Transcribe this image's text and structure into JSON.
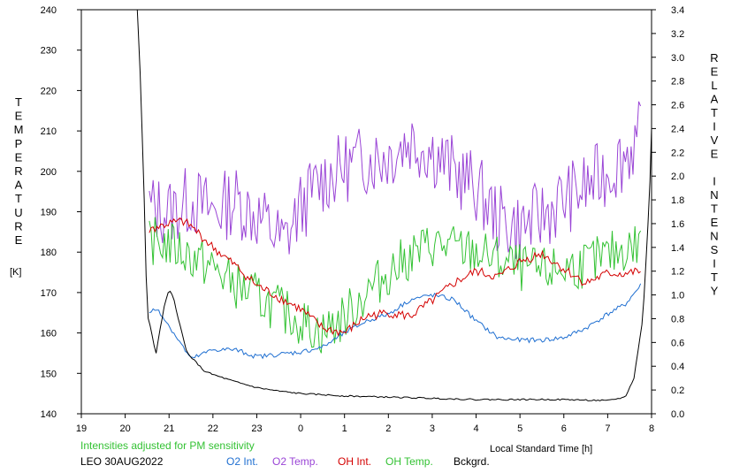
{
  "chart_data": {
    "type": "line",
    "xlabel": "Local Standard Time [h]",
    "ylabel_left": "TEMPERATURE",
    "ylabel_left_unit": "[K]",
    "ylabel_right": "RELATIVE INTENSITY",
    "x_ticks": [
      "19",
      "20",
      "21",
      "22",
      "23",
      "0",
      "1",
      "2",
      "3",
      "4",
      "5",
      "6",
      "7",
      "8"
    ],
    "x_range": [
      19,
      32
    ],
    "y_left_range": [
      140,
      240
    ],
    "y_left_ticks": [
      "140",
      "150",
      "160",
      "170",
      "180",
      "190",
      "200",
      "210",
      "220",
      "230",
      "240"
    ],
    "y_right_range": [
      0.0,
      3.4
    ],
    "y_right_ticks": [
      "0.0",
      "0.2",
      "0.4",
      "0.6",
      "0.8",
      "1.0",
      "1.2",
      "1.4",
      "1.6",
      "1.8",
      "2.0",
      "2.2",
      "2.4",
      "2.6",
      "2.8",
      "3.0",
      "3.2",
      "3.4"
    ],
    "note": "Intensities adjusted for PM sensitivity",
    "station": "LEO 30AUG2022",
    "legend": [
      {
        "name": "O2 Int.",
        "color": "#1f6fd1"
      },
      {
        "name": "O2 Temp.",
        "color": "#9a45d6"
      },
      {
        "name": "OH Int.",
        "color": "#d40000"
      },
      {
        "name": "OH Temp.",
        "color": "#33c233"
      },
      {
        "name": "Bckgrd.",
        "color": "#000000"
      }
    ],
    "series": [
      {
        "name": "O2 Temp.",
        "axis": "left",
        "color": "#9a45d6",
        "jitter": 9,
        "x": [
          20.55,
          21.0,
          21.5,
          22.0,
          22.5,
          23.0,
          23.3,
          23.6,
          24.0,
          24.5,
          25.0,
          25.5,
          26.0,
          26.5,
          27.0,
          27.5,
          28.0,
          28.5,
          29.0,
          29.5,
          30.0,
          30.5,
          31.0,
          31.4,
          31.75
        ],
        "y": [
          191,
          190,
          193,
          190,
          193,
          189,
          186,
          182,
          191,
          198,
          201,
          203,
          204,
          208,
          205,
          200,
          196,
          188,
          186,
          189,
          193,
          196,
          200,
          204,
          209
        ]
      },
      {
        "name": "OH Temp.",
        "axis": "left",
        "color": "#33c233",
        "jitter": 6,
        "x": [
          20.55,
          21.0,
          21.5,
          22.0,
          22.5,
          23.0,
          23.5,
          24.0,
          24.5,
          25.0,
          25.5,
          26.0,
          26.5,
          27.0,
          27.5,
          28.0,
          28.5,
          29.0,
          29.5,
          30.0,
          30.5,
          31.0,
          31.4,
          31.75
        ],
        "y": [
          183,
          182,
          179,
          176,
          172,
          169,
          166,
          163,
          160,
          164,
          170,
          175,
          179,
          182,
          181,
          180,
          178,
          176,
          175,
          176,
          177,
          179,
          181,
          182
        ]
      },
      {
        "name": "O2 Int.",
        "axis": "right",
        "color": "#1f6fd1",
        "jitter": 0.02,
        "x": [
          20.55,
          20.75,
          21.5,
          22.0,
          22.5,
          23.0,
          23.5,
          24.0,
          24.5,
          25.0,
          25.5,
          26.0,
          26.5,
          27.0,
          27.5,
          28.0,
          28.5,
          29.0,
          29.5,
          30.0,
          30.5,
          31.0,
          31.4,
          31.75
        ],
        "y": [
          0.86,
          0.88,
          0.46,
          0.54,
          0.54,
          0.48,
          0.5,
          0.52,
          0.56,
          0.68,
          0.78,
          0.84,
          0.96,
          1.0,
          0.96,
          0.78,
          0.64,
          0.62,
          0.62,
          0.64,
          0.72,
          0.84,
          0.92,
          1.08
        ]
      },
      {
        "name": "OH Int.",
        "axis": "right",
        "color": "#d40000",
        "jitter": 0.04,
        "x": [
          20.55,
          21.0,
          21.3,
          21.5,
          22.0,
          22.5,
          23.0,
          23.5,
          24.0,
          24.5,
          25.0,
          25.5,
          26.0,
          26.5,
          27.0,
          27.5,
          28.0,
          28.5,
          29.0,
          29.5,
          30.0,
          30.5,
          31.0,
          31.4,
          31.75
        ],
        "y": [
          1.55,
          1.6,
          1.62,
          1.58,
          1.4,
          1.25,
          1.08,
          0.98,
          0.88,
          0.72,
          0.68,
          0.82,
          0.85,
          0.82,
          0.95,
          1.1,
          1.2,
          1.15,
          1.28,
          1.35,
          1.22,
          1.1,
          1.18,
          1.18,
          1.2
        ]
      },
      {
        "name": "Bckgrd.",
        "axis": "right",
        "color": "#000000",
        "jitter": 0.006,
        "x": [
          20.25,
          20.35,
          20.45,
          20.5,
          20.55,
          20.6,
          20.7,
          20.8,
          20.9,
          21.0,
          21.1,
          21.2,
          21.4,
          21.6,
          21.8,
          22.0,
          22.5,
          23.0,
          23.5,
          24.0,
          25.0,
          26.0,
          27.0,
          28.0,
          29.0,
          30.0,
          31.0,
          31.4,
          31.6,
          31.8,
          31.95,
          32.05,
          32.1
        ],
        "y": [
          3.6,
          2.8,
          1.6,
          0.82,
          0.78,
          0.68,
          0.5,
          0.72,
          0.92,
          1.04,
          0.98,
          0.82,
          0.52,
          0.44,
          0.36,
          0.33,
          0.27,
          0.22,
          0.19,
          0.17,
          0.15,
          0.14,
          0.13,
          0.12,
          0.12,
          0.12,
          0.11,
          0.14,
          0.3,
          0.8,
          1.8,
          3.0,
          3.6
        ]
      }
    ]
  }
}
